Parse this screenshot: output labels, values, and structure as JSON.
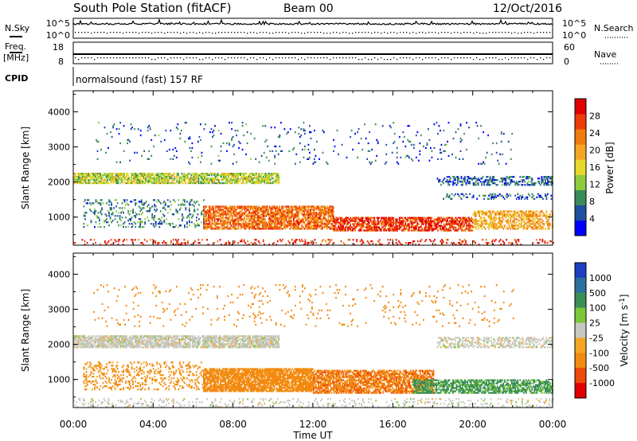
{
  "header": {
    "title": "South Pole Station (fitACF)",
    "beam": "Beam 00",
    "date": "12/Oct/2016"
  },
  "top_panels": {
    "nsky_label": "N.Sky",
    "nsearch_label": "N.Search",
    "freq_label": "Freq.",
    "freq_unit": "[MHz]",
    "nave_label": "Nave",
    "cpid_label": "CPID",
    "nsky_ticks": [
      "10^5",
      "10^0"
    ],
    "nsearch_ticks": [
      "10^5",
      "10^0"
    ],
    "freq_ticks": [
      "18",
      "8"
    ],
    "nave_ticks": [
      "60",
      "0"
    ],
    "program": "normalsound (fast) 157 RF"
  },
  "time_axis": {
    "label": "Time UT",
    "ticks": [
      "00:00",
      "04:00",
      "08:00",
      "12:00",
      "16:00",
      "20:00",
      "00:00"
    ]
  },
  "colors": {
    "power_scale": [
      "#0000ff",
      "#1e4fa0",
      "#3a8a5a",
      "#8dcc3c",
      "#e8d82a",
      "#f5a623",
      "#f07b10",
      "#ee3b0a",
      "#e00000"
    ],
    "velocity_scale": [
      "#1e3fbf",
      "#2f6fa0",
      "#3b8f55",
      "#7cc83a",
      "#c8c8c0",
      "#f5a623",
      "#f28a12",
      "#ee4a0a",
      "#e00000"
    ]
  },
  "chart_data": [
    {
      "type": "heatmap",
      "name": "power",
      "ylabel": "Slant Range [km]",
      "xlabel": "",
      "xlim": [
        0,
        24
      ],
      "ylim": [
        200,
        4600
      ],
      "yticks": [
        "1000",
        "2000",
        "3000",
        "4000"
      ],
      "colorbar_label": "Power [dB]",
      "colorbar_ticks": [
        "4",
        "8",
        "12",
        "16",
        "20",
        "24",
        "28"
      ],
      "colorbar_range": [
        0,
        32
      ],
      "regions": [
        {
          "x": [
            0,
            10.3
          ],
          "range": [
            1950,
            2250
          ],
          "value": 14,
          "density": 0.75
        },
        {
          "x": [
            18.2,
            24
          ],
          "range": [
            1900,
            2150
          ],
          "value": 6,
          "density": 0.45
        },
        {
          "x": [
            18.5,
            24
          ],
          "range": [
            1500,
            1650
          ],
          "value": 6,
          "density": 0.3
        },
        {
          "x": [
            6.5,
            13
          ],
          "range": [
            650,
            1300
          ],
          "value": 24,
          "density": 0.75
        },
        {
          "x": [
            13,
            20
          ],
          "range": [
            600,
            1000
          ],
          "value": 27,
          "density": 0.7
        },
        {
          "x": [
            20,
            24
          ],
          "range": [
            650,
            1150
          ],
          "value": 20,
          "density": 0.6
        },
        {
          "x": [
            0.5,
            6.5
          ],
          "range": [
            700,
            1500
          ],
          "value": 8,
          "density": 0.2
        },
        {
          "x": [
            0,
            24
          ],
          "range": [
            200,
            350
          ],
          "value": 28,
          "density": 0.18
        },
        {
          "x": [
            1,
            22
          ],
          "range": [
            2500,
            3700
          ],
          "value": 6,
          "density": 0.04
        }
      ]
    },
    {
      "type": "heatmap",
      "name": "velocity",
      "ylabel": "Slant Range [km]",
      "xlabel": "Time UT",
      "xlim": [
        0,
        24
      ],
      "ylim": [
        200,
        4600
      ],
      "yticks": [
        "1000",
        "2000",
        "3000",
        "4000"
      ],
      "colorbar_label": "Velocity [m s^-1]",
      "colorbar_ticks": [
        "1000",
        "500",
        "100",
        "25",
        "-25",
        "-100",
        "-500",
        "-1000"
      ],
      "regions": [
        {
          "x": [
            0,
            10.3
          ],
          "range": [
            1900,
            2250
          ],
          "value": 0,
          "density": 0.8
        },
        {
          "x": [
            18.2,
            24
          ],
          "range": [
            1900,
            2200
          ],
          "value": 0,
          "density": 0.5
        },
        {
          "x": [
            6.5,
            12
          ],
          "range": [
            650,
            1300
          ],
          "value": -200,
          "density": 0.85
        },
        {
          "x": [
            12,
            18
          ],
          "range": [
            600,
            1250
          ],
          "value": -400,
          "density": 0.75
        },
        {
          "x": [
            17,
            24
          ],
          "range": [
            600,
            1000
          ],
          "value": 150,
          "density": 0.7
        },
        {
          "x": [
            0.5,
            6.5
          ],
          "range": [
            700,
            1500
          ],
          "value": -150,
          "density": 0.25
        },
        {
          "x": [
            0,
            24
          ],
          "range": [
            200,
            450
          ],
          "value": 0,
          "density": 0.15
        },
        {
          "x": [
            1,
            22
          ],
          "range": [
            2500,
            3700
          ],
          "value": -300,
          "density": 0.04
        }
      ]
    }
  ]
}
